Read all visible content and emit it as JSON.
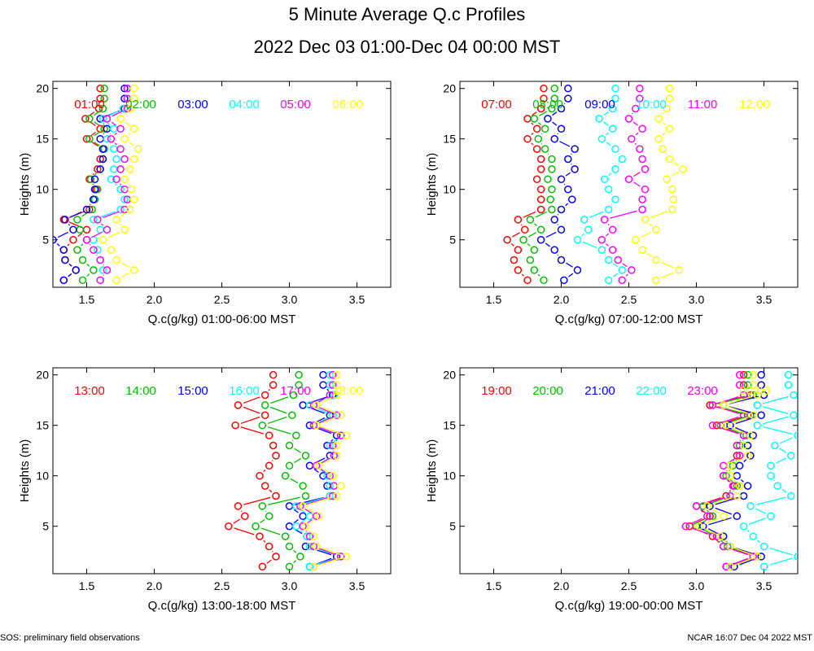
{
  "title": "5 Minute Average Q.c Profiles",
  "subtitle": "2022 Dec 03 01:00-Dec 04 00:00 MST",
  "footer_left": "SOS: preliminary field observations",
  "footer_right": "NCAR 16:07 Dec 04 2022 MST",
  "chart_data": [
    {
      "type": "line",
      "xlabel": "Q.c(g/kg) 01:00-06:00 MST",
      "ylabel": "Heights (m)",
      "xlim": [
        1.25,
        3.75
      ],
      "ylim": [
        0.3,
        20.7
      ],
      "xticks": [
        "1.5",
        "2.0",
        "2.5",
        "3.0",
        "3.5"
      ],
      "yticks": [
        "5",
        "10",
        "15",
        "20"
      ],
      "heights": [
        1,
        2,
        3,
        4,
        5,
        6,
        7,
        8,
        9,
        10,
        11,
        12,
        13,
        14,
        15,
        16,
        17,
        18,
        19,
        20
      ],
      "series": [
        {
          "name": "01:00",
          "color": "#ff0000",
          "values": [
            1.33,
            1.42,
            1.34,
            1.33,
            1.4,
            1.5,
            1.33,
            1.52,
            1.55,
            1.57,
            1.52,
            1.58,
            1.6,
            1.62,
            1.5,
            1.6,
            1.49,
            1.59,
            1.6,
            1.6
          ]
        },
        {
          "name": "02:00",
          "color": "#00c000",
          "values": [
            1.47,
            1.55,
            1.47,
            1.43,
            1.5,
            1.45,
            1.43,
            1.54,
            1.56,
            1.58,
            1.53,
            1.6,
            1.62,
            1.63,
            1.52,
            1.63,
            1.52,
            1.62,
            1.63,
            1.63
          ]
        },
        {
          "name": "03:00",
          "color": "#0000ff",
          "values": [
            1.33,
            1.42,
            1.34,
            1.33,
            1.25,
            1.4,
            1.34,
            1.5,
            1.55,
            1.56,
            1.56,
            1.6,
            1.62,
            1.62,
            1.6,
            1.65,
            1.6,
            1.78,
            1.78,
            1.78
          ]
        },
        {
          "name": "04:00",
          "color": "#00ffff",
          "values": [
            1.6,
            1.62,
            1.6,
            1.58,
            1.55,
            1.6,
            1.55,
            1.75,
            1.78,
            1.75,
            1.68,
            1.7,
            1.72,
            1.7,
            1.65,
            1.7,
            1.62,
            1.77,
            1.8,
            1.8
          ]
        },
        {
          "name": "05:00",
          "color": "#ff00ff",
          "values": [
            1.6,
            1.65,
            1.6,
            1.55,
            1.5,
            1.65,
            1.58,
            1.78,
            1.8,
            1.78,
            1.72,
            1.75,
            1.78,
            1.75,
            1.68,
            1.75,
            1.65,
            1.8,
            1.8,
            1.8
          ]
        },
        {
          "name": "06:00",
          "color": "#ffff00",
          "values": [
            1.72,
            1.85,
            1.72,
            1.68,
            1.62,
            1.78,
            1.72,
            1.82,
            1.85,
            1.83,
            1.78,
            1.82,
            1.85,
            1.88,
            1.78,
            1.85,
            1.75,
            1.82,
            1.85,
            1.85
          ]
        }
      ]
    },
    {
      "type": "line",
      "xlabel": "Q.c(g/kg) 07:00-12:00 MST",
      "ylabel": "Heights (m)",
      "xlim": [
        1.25,
        3.75
      ],
      "ylim": [
        0.3,
        20.7
      ],
      "xticks": [
        "1.5",
        "2.0",
        "2.5",
        "3.0",
        "3.5"
      ],
      "yticks": [
        "5",
        "10",
        "15",
        "20"
      ],
      "heights": [
        1,
        2,
        3,
        4,
        5,
        6,
        7,
        8,
        9,
        10,
        11,
        12,
        13,
        14,
        15,
        16,
        17,
        18,
        19,
        20
      ],
      "series": [
        {
          "name": "07:00",
          "color": "#ff0000",
          "values": [
            1.75,
            1.68,
            1.65,
            1.68,
            1.6,
            1.73,
            1.68,
            1.85,
            1.85,
            1.85,
            1.82,
            1.85,
            1.85,
            1.82,
            1.75,
            1.82,
            1.75,
            1.85,
            1.87,
            1.87
          ]
        },
        {
          "name": "08:00",
          "color": "#00c000",
          "values": [
            1.87,
            1.8,
            1.77,
            1.8,
            1.72,
            1.85,
            1.77,
            1.93,
            1.92,
            1.93,
            1.9,
            1.93,
            1.93,
            1.88,
            1.83,
            1.88,
            1.8,
            1.93,
            1.95,
            1.95
          ]
        },
        {
          "name": "09:00",
          "color": "#0000ff",
          "values": [
            2.02,
            2.12,
            2.0,
            1.95,
            1.85,
            2.0,
            1.95,
            2.0,
            2.08,
            2.05,
            2.0,
            2.1,
            2.05,
            2.1,
            1.95,
            2.0,
            1.9,
            2.0,
            2.05,
            2.05
          ]
        },
        {
          "name": "10:00",
          "color": "#00ffff",
          "values": [
            2.35,
            2.45,
            2.35,
            2.3,
            2.12,
            2.2,
            2.17,
            2.35,
            2.4,
            2.35,
            2.32,
            2.4,
            2.45,
            2.4,
            2.3,
            2.38,
            2.28,
            2.38,
            2.4,
            2.4
          ]
        },
        {
          "name": "11:00",
          "color": "#ff00ff",
          "values": [
            2.45,
            2.52,
            2.42,
            2.38,
            2.3,
            2.38,
            2.32,
            2.6,
            2.6,
            2.62,
            2.5,
            2.62,
            2.6,
            2.58,
            2.52,
            2.6,
            2.5,
            2.55,
            2.58,
            2.58
          ]
        },
        {
          "name": "12:00",
          "color": "#ffff00",
          "values": [
            2.7,
            2.87,
            2.7,
            2.6,
            2.55,
            2.7,
            2.62,
            2.82,
            2.83,
            2.82,
            2.78,
            2.9,
            2.8,
            2.75,
            2.72,
            2.8,
            2.72,
            2.78,
            2.8,
            2.8
          ]
        }
      ]
    },
    {
      "type": "line",
      "xlabel": "Q.c(g/kg) 13:00-18:00 MST",
      "ylabel": "Heights (m)",
      "xlim": [
        1.25,
        3.75
      ],
      "ylim": [
        0.3,
        20.7
      ],
      "xticks": [
        "1.5",
        "2.0",
        "2.5",
        "3.0",
        "3.5"
      ],
      "yticks": [
        "5",
        "10",
        "15",
        "20"
      ],
      "heights": [
        1,
        2,
        3,
        4,
        5,
        6,
        7,
        8,
        9,
        10,
        11,
        12,
        13,
        14,
        15,
        16,
        17,
        18,
        19,
        20
      ],
      "series": [
        {
          "name": "13:00",
          "color": "#ff0000",
          "values": [
            2.8,
            2.9,
            2.85,
            2.78,
            2.55,
            2.67,
            2.62,
            2.9,
            2.82,
            2.78,
            2.85,
            2.9,
            2.88,
            2.85,
            2.6,
            2.82,
            2.62,
            2.82,
            2.88,
            2.88
          ]
        },
        {
          "name": "14:00",
          "color": "#00c000",
          "values": [
            3.0,
            3.08,
            3.0,
            2.97,
            2.75,
            2.85,
            2.8,
            3.12,
            3.1,
            2.97,
            3.0,
            3.12,
            3.0,
            3.05,
            2.8,
            3.02,
            2.82,
            3.03,
            3.07,
            3.07
          ]
        },
        {
          "name": "15:00",
          "color": "#0000ff",
          "values": [
            3.15,
            3.35,
            3.12,
            3.13,
            3.0,
            3.1,
            3.0,
            3.3,
            3.28,
            3.25,
            3.15,
            3.3,
            3.28,
            3.35,
            3.15,
            3.3,
            3.1,
            3.32,
            3.25,
            3.25
          ]
        },
        {
          "name": "16:00",
          "color": "#00ffff",
          "values": [
            3.15,
            3.38,
            3.15,
            3.13,
            3.05,
            3.15,
            3.05,
            3.3,
            3.3,
            3.28,
            3.2,
            3.35,
            3.3,
            3.38,
            3.18,
            3.32,
            3.15,
            3.33,
            3.3,
            3.3
          ]
        },
        {
          "name": "17:00",
          "color": "#ff00ff",
          "values": [
            3.18,
            3.38,
            3.18,
            3.15,
            3.1,
            3.2,
            3.08,
            3.32,
            3.33,
            3.3,
            3.2,
            3.33,
            3.32,
            3.38,
            3.18,
            3.35,
            3.18,
            3.3,
            3.32,
            3.32
          ]
        },
        {
          "name": "18:00",
          "color": "#ffff00",
          "values": [
            3.18,
            3.42,
            3.2,
            3.18,
            3.12,
            3.22,
            3.1,
            3.35,
            3.38,
            3.32,
            3.22,
            3.35,
            3.35,
            3.42,
            3.2,
            3.38,
            3.2,
            3.35,
            3.35,
            3.35
          ]
        }
      ]
    },
    {
      "type": "line",
      "xlabel": "Q.c(g/kg) 19:00-00:00 MST",
      "ylabel": "Heights (m)",
      "xlim": [
        1.25,
        3.75
      ],
      "ylim": [
        0.3,
        20.7
      ],
      "xticks": [
        "1.5",
        "2.0",
        "2.5",
        "3.0",
        "3.5"
      ],
      "yticks": [
        "5",
        "10",
        "15",
        "20"
      ],
      "heights": [
        1,
        2,
        3,
        4,
        5,
        6,
        7,
        8,
        9,
        10,
        11,
        12,
        13,
        14,
        15,
        16,
        17,
        18,
        19,
        20
      ],
      "series": [
        {
          "name": "19:00",
          "color": "#ff0000",
          "values": [
            3.22,
            3.45,
            3.2,
            3.12,
            2.95,
            3.1,
            3.0,
            3.22,
            3.28,
            3.2,
            3.25,
            3.3,
            3.3,
            3.35,
            3.15,
            3.38,
            3.1,
            3.4,
            3.35,
            3.35
          ]
        },
        {
          "name": "20:00",
          "color": "#00c000",
          "values": [
            3.25,
            3.45,
            3.23,
            3.15,
            3.0,
            3.12,
            3.05,
            3.25,
            3.3,
            3.22,
            3.27,
            3.32,
            3.32,
            3.37,
            3.18,
            3.4,
            3.12,
            3.42,
            3.38,
            3.38
          ]
        },
        {
          "name": "21:00",
          "color": "#0000ff",
          "values": [
            3.28,
            3.48,
            3.25,
            3.2,
            3.05,
            3.3,
            3.1,
            3.35,
            3.38,
            3.3,
            3.32,
            3.4,
            3.38,
            3.42,
            3.25,
            3.48,
            3.2,
            3.5,
            3.48,
            3.48
          ]
        },
        {
          "name": "22:00",
          "color": "#00ffff",
          "values": [
            3.5,
            3.75,
            3.5,
            3.42,
            3.35,
            3.55,
            3.4,
            3.7,
            3.6,
            3.55,
            3.55,
            3.7,
            3.58,
            3.75,
            3.45,
            3.72,
            3.45,
            3.72,
            3.68,
            3.68
          ]
        },
        {
          "name": "23:00",
          "color": "#ff00ff",
          "values": [
            3.22,
            3.42,
            3.2,
            3.15,
            2.92,
            3.08,
            3.0,
            3.25,
            3.27,
            3.2,
            3.2,
            3.32,
            3.3,
            3.35,
            3.12,
            3.35,
            3.12,
            3.35,
            3.32,
            3.32
          ]
        },
        {
          "name": "00:00",
          "color": "#ffff00",
          "values": [
            3.25,
            3.45,
            3.25,
            3.18,
            3.02,
            3.2,
            3.08,
            3.3,
            3.32,
            3.25,
            3.25,
            3.38,
            3.35,
            3.4,
            3.22,
            3.42,
            3.2,
            3.45,
            3.42,
            3.42
          ]
        }
      ]
    }
  ]
}
